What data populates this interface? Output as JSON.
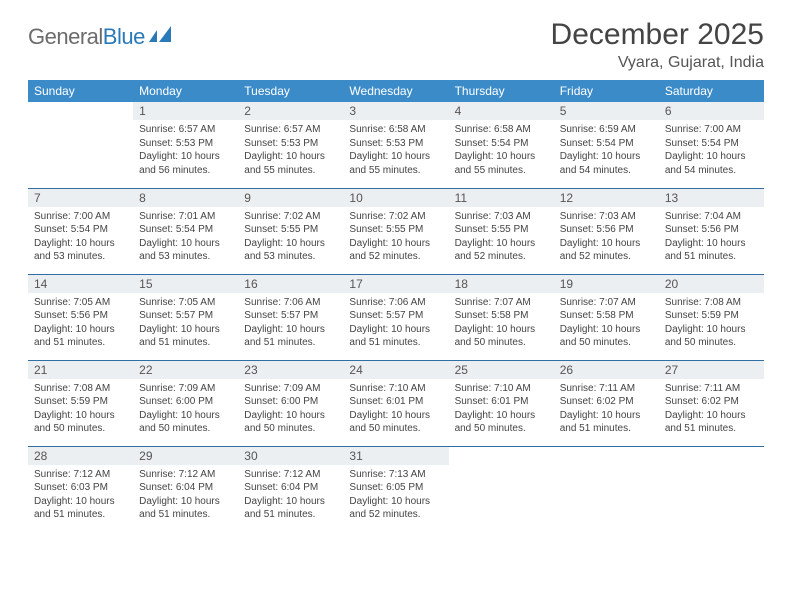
{
  "brand": {
    "name_gray": "General",
    "name_blue": "Blue"
  },
  "title": "December 2025",
  "location": "Vyara, Gujarat, India",
  "colors": {
    "header_bg": "#3b8bc9",
    "header_fg": "#ffffff",
    "daynum_bg": "#eceff1",
    "rule": "#2f6fa3",
    "brand_gray": "#6c6c6c",
    "brand_blue": "#2a7ab9"
  },
  "weekdays": [
    "Sunday",
    "Monday",
    "Tuesday",
    "Wednesday",
    "Thursday",
    "Friday",
    "Saturday"
  ],
  "grid": [
    [
      null,
      {
        "n": "1",
        "sr": "6:57 AM",
        "ss": "5:53 PM",
        "dl": "10 hours and 56 minutes."
      },
      {
        "n": "2",
        "sr": "6:57 AM",
        "ss": "5:53 PM",
        "dl": "10 hours and 55 minutes."
      },
      {
        "n": "3",
        "sr": "6:58 AM",
        "ss": "5:53 PM",
        "dl": "10 hours and 55 minutes."
      },
      {
        "n": "4",
        "sr": "6:58 AM",
        "ss": "5:54 PM",
        "dl": "10 hours and 55 minutes."
      },
      {
        "n": "5",
        "sr": "6:59 AM",
        "ss": "5:54 PM",
        "dl": "10 hours and 54 minutes."
      },
      {
        "n": "6",
        "sr": "7:00 AM",
        "ss": "5:54 PM",
        "dl": "10 hours and 54 minutes."
      }
    ],
    [
      {
        "n": "7",
        "sr": "7:00 AM",
        "ss": "5:54 PM",
        "dl": "10 hours and 53 minutes."
      },
      {
        "n": "8",
        "sr": "7:01 AM",
        "ss": "5:54 PM",
        "dl": "10 hours and 53 minutes."
      },
      {
        "n": "9",
        "sr": "7:02 AM",
        "ss": "5:55 PM",
        "dl": "10 hours and 53 minutes."
      },
      {
        "n": "10",
        "sr": "7:02 AM",
        "ss": "5:55 PM",
        "dl": "10 hours and 52 minutes."
      },
      {
        "n": "11",
        "sr": "7:03 AM",
        "ss": "5:55 PM",
        "dl": "10 hours and 52 minutes."
      },
      {
        "n": "12",
        "sr": "7:03 AM",
        "ss": "5:56 PM",
        "dl": "10 hours and 52 minutes."
      },
      {
        "n": "13",
        "sr": "7:04 AM",
        "ss": "5:56 PM",
        "dl": "10 hours and 51 minutes."
      }
    ],
    [
      {
        "n": "14",
        "sr": "7:05 AM",
        "ss": "5:56 PM",
        "dl": "10 hours and 51 minutes."
      },
      {
        "n": "15",
        "sr": "7:05 AM",
        "ss": "5:57 PM",
        "dl": "10 hours and 51 minutes."
      },
      {
        "n": "16",
        "sr": "7:06 AM",
        "ss": "5:57 PM",
        "dl": "10 hours and 51 minutes."
      },
      {
        "n": "17",
        "sr": "7:06 AM",
        "ss": "5:57 PM",
        "dl": "10 hours and 51 minutes."
      },
      {
        "n": "18",
        "sr": "7:07 AM",
        "ss": "5:58 PM",
        "dl": "10 hours and 50 minutes."
      },
      {
        "n": "19",
        "sr": "7:07 AM",
        "ss": "5:58 PM",
        "dl": "10 hours and 50 minutes."
      },
      {
        "n": "20",
        "sr": "7:08 AM",
        "ss": "5:59 PM",
        "dl": "10 hours and 50 minutes."
      }
    ],
    [
      {
        "n": "21",
        "sr": "7:08 AM",
        "ss": "5:59 PM",
        "dl": "10 hours and 50 minutes."
      },
      {
        "n": "22",
        "sr": "7:09 AM",
        "ss": "6:00 PM",
        "dl": "10 hours and 50 minutes."
      },
      {
        "n": "23",
        "sr": "7:09 AM",
        "ss": "6:00 PM",
        "dl": "10 hours and 50 minutes."
      },
      {
        "n": "24",
        "sr": "7:10 AM",
        "ss": "6:01 PM",
        "dl": "10 hours and 50 minutes."
      },
      {
        "n": "25",
        "sr": "7:10 AM",
        "ss": "6:01 PM",
        "dl": "10 hours and 50 minutes."
      },
      {
        "n": "26",
        "sr": "7:11 AM",
        "ss": "6:02 PM",
        "dl": "10 hours and 51 minutes."
      },
      {
        "n": "27",
        "sr": "7:11 AM",
        "ss": "6:02 PM",
        "dl": "10 hours and 51 minutes."
      }
    ],
    [
      {
        "n": "28",
        "sr": "7:12 AM",
        "ss": "6:03 PM",
        "dl": "10 hours and 51 minutes."
      },
      {
        "n": "29",
        "sr": "7:12 AM",
        "ss": "6:04 PM",
        "dl": "10 hours and 51 minutes."
      },
      {
        "n": "30",
        "sr": "7:12 AM",
        "ss": "6:04 PM",
        "dl": "10 hours and 51 minutes."
      },
      {
        "n": "31",
        "sr": "7:13 AM",
        "ss": "6:05 PM",
        "dl": "10 hours and 52 minutes."
      },
      null,
      null,
      null
    ]
  ],
  "labels": {
    "sunrise": "Sunrise:",
    "sunset": "Sunset:",
    "daylight": "Daylight:"
  }
}
